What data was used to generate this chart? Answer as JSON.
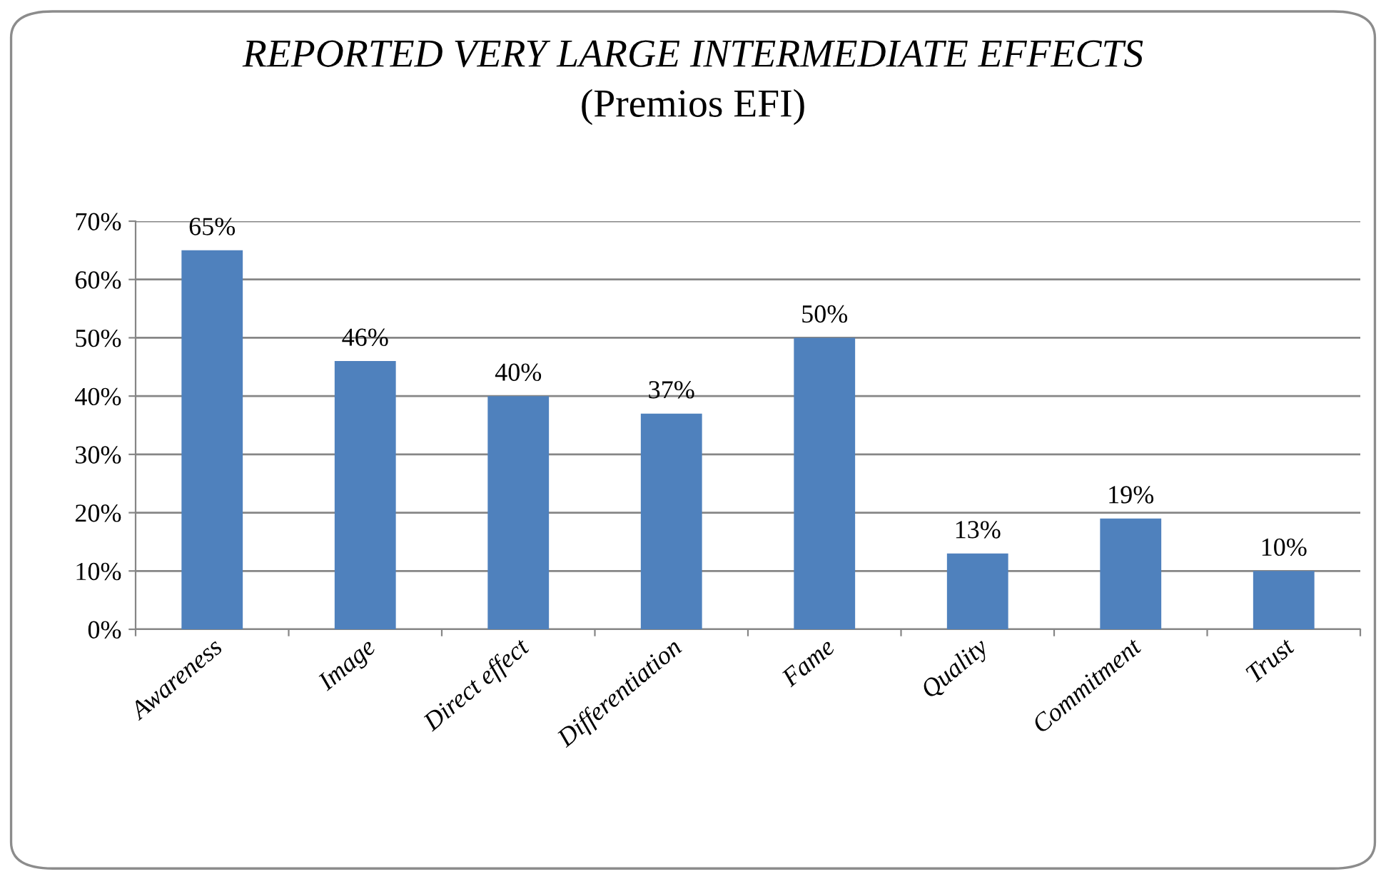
{
  "chart_data": {
    "type": "bar",
    "title": "REPORTED VERY LARGE INTERMEDIATE EFFECTS",
    "subtitle": "(Premios EFI)",
    "categories": [
      "Awareness",
      "Image",
      "Direct effect",
      "Differentiation",
      "Fame",
      "Quality",
      "Commitment",
      "Trust"
    ],
    "values": [
      65,
      46,
      40,
      37,
      50,
      13,
      19,
      10
    ],
    "value_labels": [
      "65%",
      "46%",
      "40%",
      "37%",
      "50%",
      "13%",
      "19%",
      "10%"
    ],
    "color": "#4f81bd",
    "ylim": [
      0,
      70
    ],
    "yticks": [
      {
        "value": 0,
        "label": "0%"
      },
      {
        "value": 10,
        "label": "10%"
      },
      {
        "value": 20,
        "label": "20%"
      },
      {
        "value": 30,
        "label": "30%"
      },
      {
        "value": 40,
        "label": "40%"
      },
      {
        "value": 50,
        "label": "50%"
      },
      {
        "value": 60,
        "label": "60%"
      },
      {
        "value": 70,
        "label": "70%"
      }
    ],
    "grid": "y"
  }
}
